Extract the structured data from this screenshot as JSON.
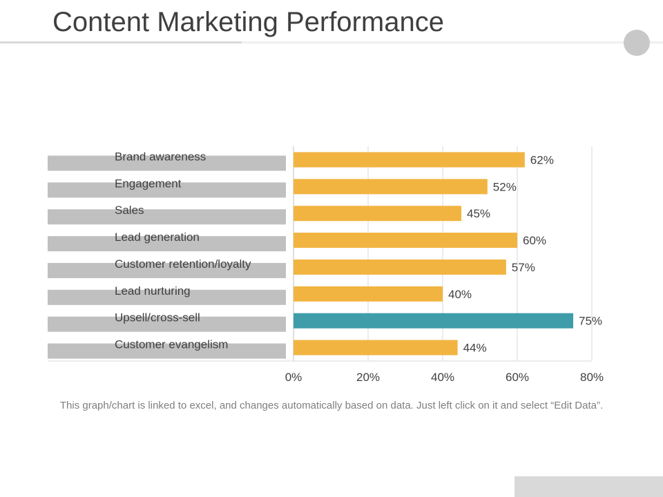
{
  "title": "Content Marketing Performance",
  "footnote": "This graph/chart is linked to excel, and changes automatically based on data. Just left click on it and select “Edit Data”.",
  "colors": {
    "bar": "#f2b441",
    "highlight": "#3f9ca9",
    "label_band": "#c0c0c0",
    "grid": "#d9d9d9"
  },
  "chart_data": {
    "type": "bar",
    "orientation": "horizontal",
    "categories": [
      "Brand awareness",
      "Engagement",
      "Sales",
      "Lead generation",
      "Customer retention/loyalty",
      "Lead nurturing",
      "Upsell/cross-sell",
      "Customer evangelism"
    ],
    "values": [
      62,
      52,
      45,
      60,
      57,
      40,
      75,
      44
    ],
    "value_labels": [
      "62%",
      "52%",
      "45%",
      "60%",
      "57%",
      "40%",
      "75%",
      "44%"
    ],
    "highlight_index": 6,
    "xlim": [
      0,
      80
    ],
    "xticks": [
      0,
      20,
      40,
      60,
      80
    ],
    "xtick_labels": [
      "0%",
      "20%",
      "40%",
      "60%",
      "80%"
    ],
    "grid": true,
    "legend": "none"
  }
}
